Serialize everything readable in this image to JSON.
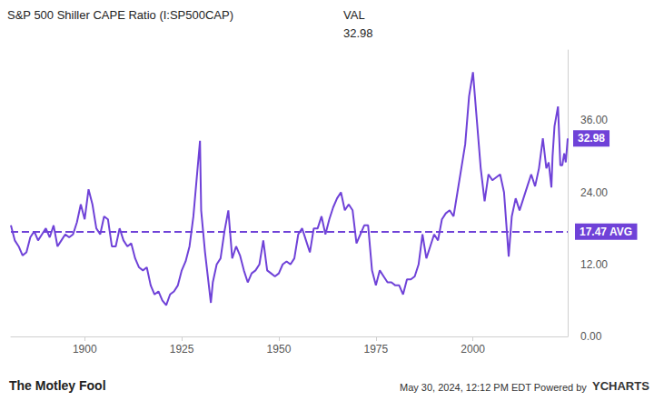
{
  "chart_data": {
    "type": "line",
    "title": "S&P 500 Shiller CAPE Ratio (I:SP500CAP)",
    "header_label": "VAL",
    "header_value": "32.98",
    "source": "The Motley Fool",
    "footnote": "May 30, 2024, 12:12 PM EDT Powered by",
    "brand": "YCHARTS",
    "color": "#6f42d8",
    "grid": false,
    "x": [
      1881,
      1882,
      1883,
      1884,
      1885,
      1886,
      1887,
      1888,
      1889,
      1890,
      1891,
      1892,
      1893,
      1894,
      1895,
      1896,
      1897,
      1898,
      1899,
      1900,
      1901,
      1902,
      1903,
      1904,
      1905,
      1906,
      1907,
      1908,
      1909,
      1910,
      1911,
      1912,
      1913,
      1914,
      1915,
      1916,
      1917,
      1918,
      1919,
      1920,
      1921,
      1922,
      1923,
      1924,
      1925,
      1926,
      1927,
      1928,
      1929.7,
      1930,
      1931,
      1932.5,
      1933,
      1934,
      1935,
      1936,
      1937,
      1938,
      1939,
      1940,
      1941,
      1942,
      1943,
      1944,
      1945,
      1946,
      1947,
      1948,
      1949,
      1950,
      1951,
      1952,
      1953,
      1954,
      1955,
      1956,
      1957,
      1958,
      1959,
      1960,
      1961,
      1962,
      1963,
      1964,
      1965,
      1966,
      1967,
      1968,
      1969,
      1970,
      1971,
      1972,
      1973,
      1974,
      1975,
      1976,
      1977,
      1978,
      1979,
      1980,
      1981,
      1982,
      1983,
      1984,
      1985,
      1986,
      1987,
      1988,
      1989,
      1990,
      1991,
      1992,
      1993,
      1994,
      1995,
      1996,
      1997,
      1998,
      1999,
      2000,
      2001,
      2002,
      2003,
      2004,
      2005,
      2006,
      2007,
      2008,
      2009.2,
      2010,
      2011,
      2012,
      2013,
      2014,
      2015,
      2016,
      2017,
      2018,
      2018.9,
      2019.5,
      2020.2,
      2020.5,
      2021,
      2021.9,
      2022.5,
      2023,
      2023.5,
      2023.9,
      2024.4
    ],
    "values": [
      18.5,
      16,
      15,
      13.5,
      14,
      16.5,
      17.5,
      16,
      17,
      18,
      16.5,
      18.5,
      15,
      16,
      17,
      16.5,
      17,
      19,
      22,
      19.5,
      24.5,
      22,
      18,
      17,
      20,
      19.5,
      15,
      15,
      18,
      16,
      15,
      15.5,
      13,
      11.5,
      11,
      11.5,
      8.5,
      7,
      7.5,
      6,
      5.2,
      7,
      7.5,
      8.5,
      11,
      12.5,
      15,
      20,
      32.6,
      21,
      14,
      5.6,
      9,
      12,
      13,
      17.5,
      21,
      13,
      15,
      13.5,
      11,
      9,
      10.5,
      11,
      12,
      16,
      11,
      10.5,
      10,
      10.5,
      12,
      12.5,
      12,
      13,
      17,
      18,
      16,
      14,
      18,
      18,
      20,
      17,
      19.5,
      21.5,
      23,
      24,
      21,
      22,
      21,
      15.5,
      17,
      18.5,
      18.5,
      11,
      8.5,
      11,
      10,
      9,
      9,
      8.5,
      8.5,
      7,
      9.5,
      9.5,
      10,
      12,
      17,
      13,
      15,
      17,
      16,
      19.5,
      20.5,
      21,
      20,
      24,
      28,
      32,
      40,
      44,
      36,
      28,
      22.5,
      27,
      26,
      26.5,
      27,
      24,
      13.3,
      20,
      23,
      21,
      23,
      25,
      27,
      25,
      28,
      33,
      28,
      29,
      24.8,
      30,
      35,
      38.3,
      28.5,
      28.5,
      30.5,
      29,
      32.98
    ],
    "xlim": [
      1881,
      2024.4
    ],
    "xticks": [
      1900,
      1925,
      1950,
      1975,
      2000
    ],
    "ylim": [
      0,
      47.7
    ],
    "yticks": [
      {
        "value": 0,
        "label": "0.00"
      },
      {
        "value": 12,
        "label": "12.00"
      },
      {
        "value": 24,
        "label": "24.00"
      },
      {
        "value": 36,
        "label": "36.00"
      }
    ],
    "average": {
      "value": 17.47,
      "label": "17.47 AVG",
      "line_style": "dashed"
    }
  }
}
